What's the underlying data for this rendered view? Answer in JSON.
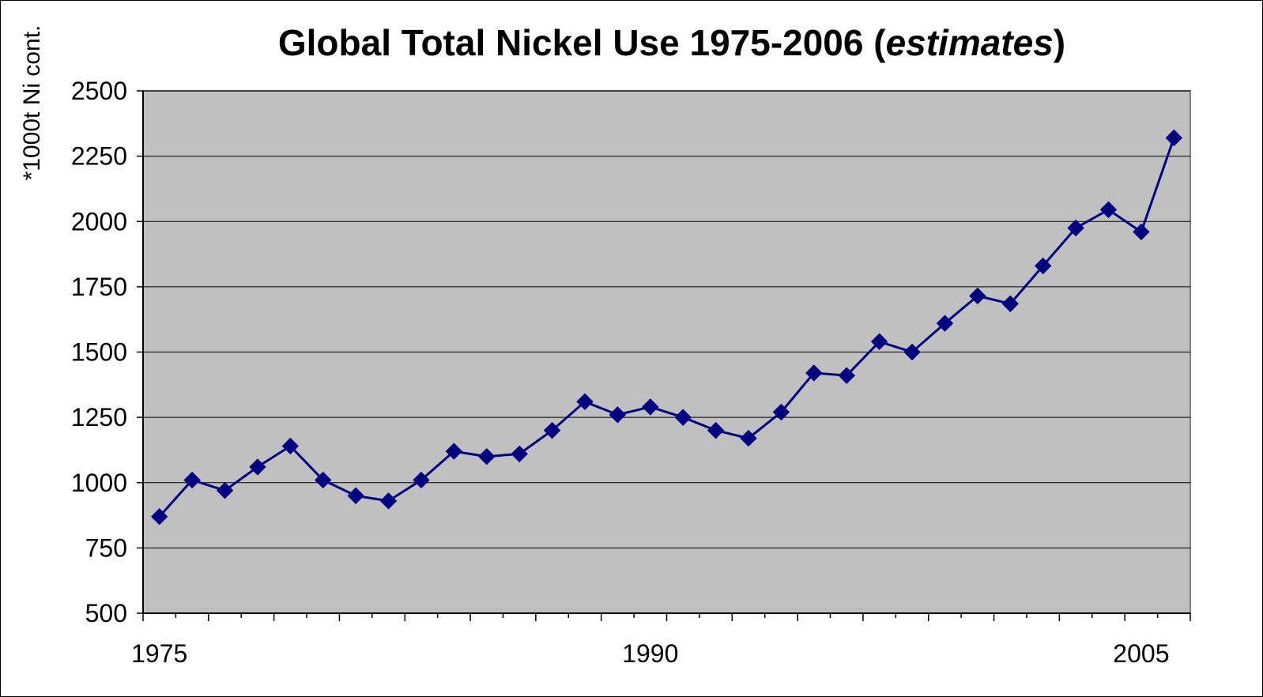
{
  "chart_data": {
    "type": "line",
    "title": "Global Total Nickel Use 1975-2006 (",
    "title_emphasis": "estimates",
    "title_suffix": ")",
    "xlabel": "",
    "ylabel": "*1000t Ni cont.",
    "xlim": [
      1975,
      2006
    ],
    "ylim": [
      500,
      2500
    ],
    "x_ticks": [
      1975,
      1990,
      2005
    ],
    "y_ticks": [
      500,
      750,
      1000,
      1250,
      1500,
      1750,
      2000,
      2250,
      2500
    ],
    "grid": true,
    "legend": "none",
    "plot_background": "#C0C0C0",
    "series": [
      {
        "color": "#000080",
        "marker": "diamond",
        "x": [
          1975,
          1976,
          1977,
          1978,
          1979,
          1980,
          1981,
          1982,
          1983,
          1984,
          1985,
          1986,
          1987,
          1988,
          1989,
          1990,
          1991,
          1992,
          1993,
          1994,
          1995,
          1996,
          1997,
          1998,
          1999,
          2000,
          2001,
          2002,
          2003,
          2004,
          2005,
          2006
        ],
        "values": [
          870,
          1010,
          970,
          1060,
          1140,
          1010,
          950,
          930,
          1010,
          1120,
          1100,
          1110,
          1200,
          1310,
          1260,
          1290,
          1250,
          1200,
          1170,
          1270,
          1420,
          1410,
          1540,
          1500,
          1610,
          1715,
          1685,
          1830,
          1975,
          2045,
          1960,
          2320
        ]
      }
    ]
  }
}
